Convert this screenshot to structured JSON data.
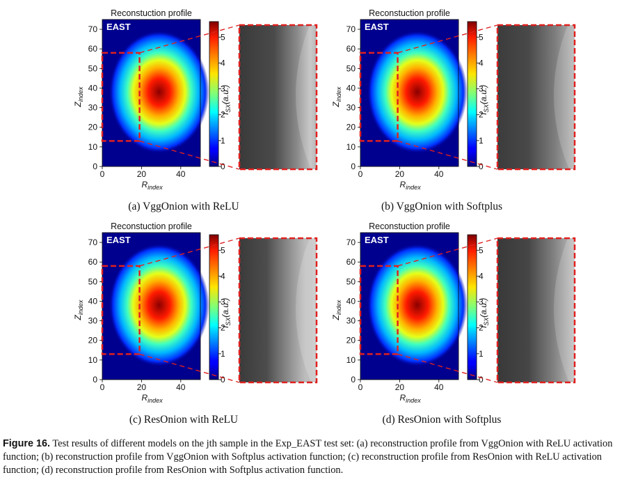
{
  "figure": {
    "label": "Figure 16.",
    "caption": "Test results of different models on the jth sample in the Exp_EAST test set: (a) reconstruction profile from VggOnion with ReLU activation function; (b) reconstruction profile from VggOnion with Softplus activation function; (c) reconstruction profile from ResOnion with ReLU activation function; (d) reconstruction profile from ResOnion with Softplus activation function."
  },
  "chart_data": [
    {
      "type": "heatmap",
      "panel": "(a)",
      "title": "Reconstuction profile",
      "tag": "EAST",
      "subcaption": "(a) VggOnion with ReLU",
      "xlabel": "R_index",
      "ylabel": "Z_index",
      "xlim": [
        0,
        50
      ],
      "ylim": [
        0,
        75
      ],
      "xticks": [
        0,
        20,
        40
      ],
      "yticks": [
        0,
        10,
        20,
        30,
        40,
        50,
        60,
        70
      ],
      "colorbar_label": "I_SX(a.u.)",
      "colorbar_range": [
        0,
        5.6
      ],
      "colorbar_ticks": [
        0,
        1,
        2,
        3,
        4,
        5
      ],
      "peak": {
        "r": 29,
        "z": 38,
        "value": 5.5
      },
      "zoom_region": {
        "r": [
          0,
          19
        ],
        "z": [
          13,
          58
        ]
      }
    },
    {
      "type": "heatmap",
      "panel": "(b)",
      "title": "Reconstuction profile",
      "tag": "EAST",
      "subcaption": "(b) VggOnion with Softplus",
      "xlabel": "R_index",
      "ylabel": "Z_index",
      "xlim": [
        0,
        50
      ],
      "ylim": [
        0,
        75
      ],
      "xticks": [
        0,
        20,
        40
      ],
      "yticks": [
        0,
        10,
        20,
        30,
        40,
        50,
        60,
        70
      ],
      "colorbar_label": "I_SX(a.u.)",
      "colorbar_range": [
        0,
        5.6
      ],
      "colorbar_ticks": [
        0,
        1,
        2,
        3,
        4,
        5
      ],
      "peak": {
        "r": 29,
        "z": 38,
        "value": 5.5
      },
      "zoom_region": {
        "r": [
          0,
          19
        ],
        "z": [
          13,
          58
        ]
      }
    },
    {
      "type": "heatmap",
      "panel": "(c)",
      "title": "Reconstuction profile",
      "tag": "EAST",
      "subcaption": "(c) ResOnion with ReLU",
      "xlabel": "R_index",
      "ylabel": "Z_index",
      "xlim": [
        0,
        50
      ],
      "ylim": [
        0,
        75
      ],
      "xticks": [
        0,
        20,
        40
      ],
      "yticks": [
        0,
        10,
        20,
        30,
        40,
        50,
        60,
        70
      ],
      "colorbar_label": "I_SX(a.u.)",
      "colorbar_range": [
        0,
        5.6
      ],
      "colorbar_ticks": [
        0,
        1,
        2,
        3,
        4,
        5
      ],
      "peak": {
        "r": 29,
        "z": 38,
        "value": 5.5
      },
      "zoom_region": {
        "r": [
          0,
          19
        ],
        "z": [
          13,
          58
        ]
      }
    },
    {
      "type": "heatmap",
      "panel": "(d)",
      "title": "Reconstuction profile",
      "tag": "EAST",
      "subcaption": "(d) ResOnion with Softplus",
      "xlabel": "R_index",
      "ylabel": "Z_index",
      "xlim": [
        0,
        50
      ],
      "ylim": [
        0,
        75
      ],
      "xticks": [
        0,
        20,
        40
      ],
      "yticks": [
        0,
        10,
        20,
        30,
        40,
        50,
        60,
        70
      ],
      "colorbar_label": "I_SX(a.u.)",
      "colorbar_range": [
        0,
        5.6
      ],
      "colorbar_ticks": [
        0,
        1,
        2,
        3,
        4,
        5
      ],
      "peak": {
        "r": 29,
        "z": 38,
        "value": 5.5
      },
      "zoom_region": {
        "r": [
          0,
          19
        ],
        "z": [
          13,
          58
        ]
      }
    }
  ]
}
